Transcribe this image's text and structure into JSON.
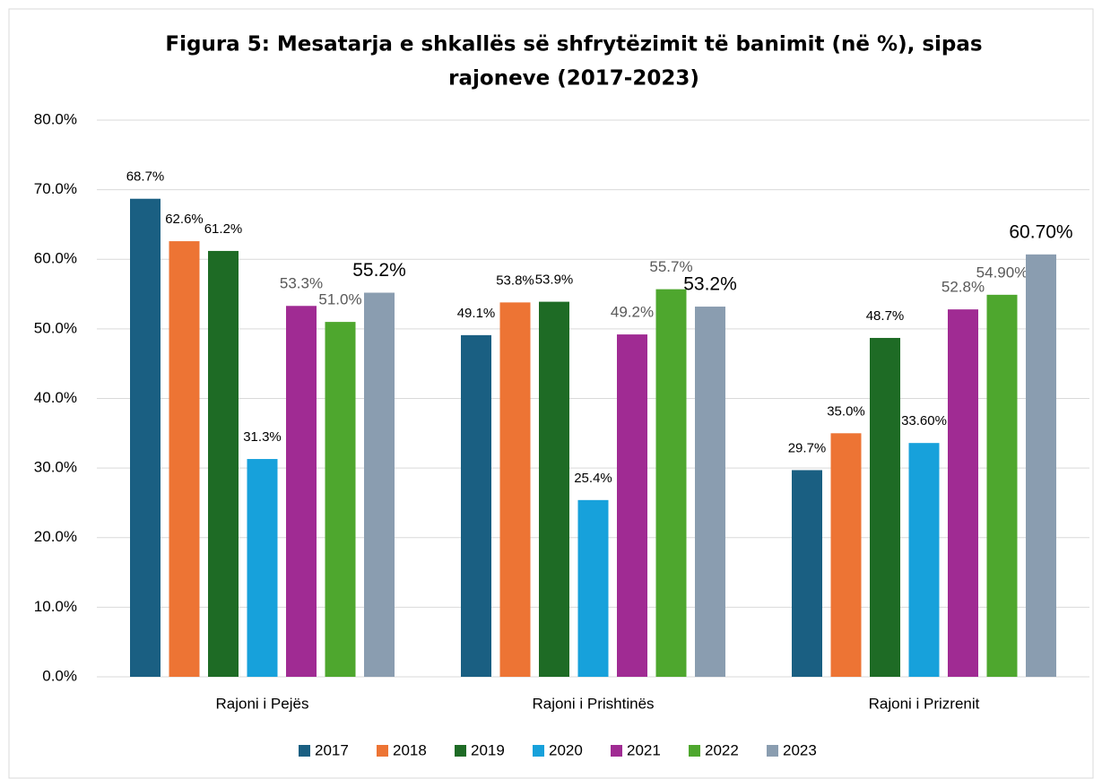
{
  "chart_data": {
    "type": "bar",
    "title": [
      "Figura 5: Mesatarja e shkallës së shfrytëzimit të  banimit (në %), sipas",
      "rajoneve (2017-2023)"
    ],
    "categories": [
      "Rajoni i Pejës",
      "Rajoni i Prishtinës",
      "Rajoni i Prizrenit"
    ],
    "series": [
      {
        "name": "2017",
        "color": "#1a5f82",
        "values": [
          68.7,
          49.1,
          29.7
        ],
        "value_labels": [
          "68.7%",
          "49.1%",
          "29.7%"
        ]
      },
      {
        "name": "2018",
        "color": "#ed7434",
        "values": [
          62.6,
          53.8,
          35.0
        ],
        "value_labels": [
          "62.6%",
          "53.8%",
          "35.0%"
        ]
      },
      {
        "name": "2019",
        "color": "#1e6b25",
        "values": [
          61.2,
          53.9,
          48.7
        ],
        "value_labels": [
          "61.2%",
          "53.9%",
          "48.7%"
        ]
      },
      {
        "name": "2020",
        "color": "#17a1db",
        "values": [
          31.3,
          25.4,
          33.6
        ],
        "value_labels": [
          "31.3%",
          "25.4%",
          "33.60%"
        ]
      },
      {
        "name": "2021",
        "color": "#a02b93",
        "values": [
          53.3,
          49.2,
          52.8
        ],
        "value_labels": [
          "53.3%",
          "49.2%",
          "52.8%"
        ]
      },
      {
        "name": "2022",
        "color": "#4ea72e",
        "values": [
          51.0,
          55.7,
          54.9
        ],
        "value_labels": [
          "51.0%",
          "55.7%",
          "54.90%"
        ]
      },
      {
        "name": "2023",
        "color": "#8a9db0",
        "values": [
          55.2,
          53.2,
          60.7
        ],
        "value_labels": [
          "55.2%",
          "53.2%",
          "60.70%"
        ]
      }
    ],
    "ylim": [
      0,
      80
    ],
    "yticks": [
      {
        "value": 0,
        "label": "0.0%"
      },
      {
        "value": 10,
        "label": "10.0%"
      },
      {
        "value": 20,
        "label": "20.0%"
      },
      {
        "value": 30,
        "label": "30.0%"
      },
      {
        "value": 40,
        "label": "40.0%"
      },
      {
        "value": 50,
        "label": "50.0%"
      },
      {
        "value": 60,
        "label": "60.0%"
      },
      {
        "value": 70,
        "label": "70.0%"
      },
      {
        "value": 80,
        "label": "80.0%"
      }
    ],
    "grid": true,
    "legend": "bottom"
  }
}
